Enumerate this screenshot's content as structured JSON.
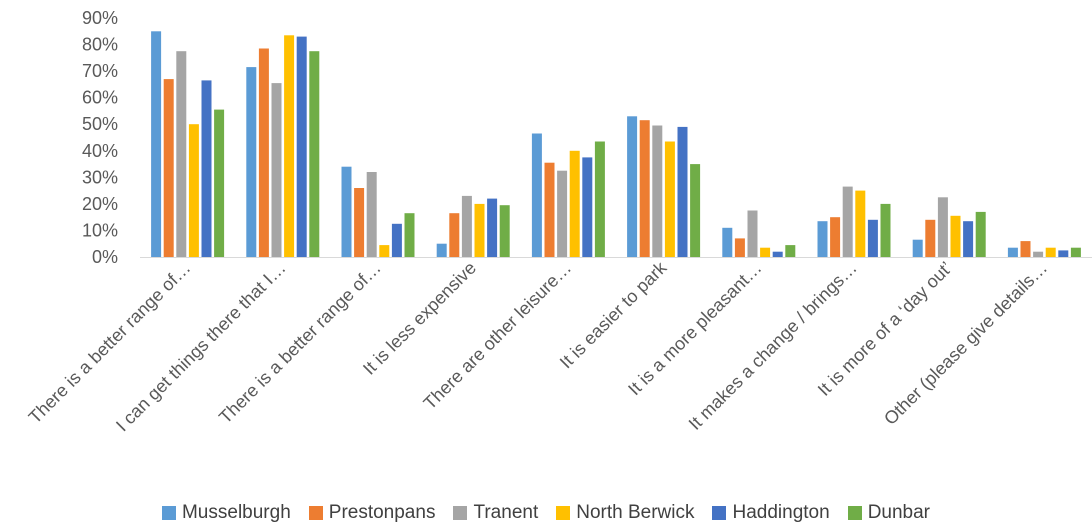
{
  "chart_data": {
    "type": "bar",
    "title": "",
    "xlabel": "",
    "ylabel": "",
    "ylim": [
      0,
      90
    ],
    "yticks": [
      "0%",
      "10%",
      "20%",
      "30%",
      "40%",
      "50%",
      "60%",
      "70%",
      "80%",
      "90%"
    ],
    "y_unit": "%",
    "grid": false,
    "legend_position": "bottom",
    "categories": [
      "There is a better range of…",
      "I can get things there that I…",
      "There is a better range of…",
      "It is less expensive",
      "There are other leisure…",
      "It is easier to park",
      "It is a more pleasant…",
      "It makes a change / brings…",
      "It is more of a ‘day out’",
      "Other (please give details…"
    ],
    "series": [
      {
        "name": "Musselburgh",
        "color": "#5B9BD5",
        "values": [
          85,
          71.5,
          34,
          5,
          46.5,
          53,
          11,
          13.5,
          6.5,
          3.5
        ]
      },
      {
        "name": "Prestonpans",
        "color": "#ED7D31",
        "values": [
          67,
          78.5,
          26,
          16.5,
          35.5,
          51.5,
          7,
          15,
          14,
          6
        ]
      },
      {
        "name": "Tranent",
        "color": "#A5A5A5",
        "values": [
          77.5,
          65.5,
          32,
          23,
          32.5,
          49.5,
          17.5,
          26.5,
          22.5,
          2
        ]
      },
      {
        "name": "North Berwick",
        "color": "#FFC000",
        "values": [
          50,
          83.5,
          4.5,
          20,
          40,
          43.5,
          3.5,
          25,
          15.5,
          3.5
        ]
      },
      {
        "name": "Haddington",
        "color": "#4472C4",
        "values": [
          66.5,
          83,
          12.5,
          22,
          37.5,
          49,
          2,
          14,
          13.5,
          2.5
        ]
      },
      {
        "name": "Dunbar",
        "color": "#70AD47",
        "values": [
          55.5,
          77.5,
          16.5,
          19.5,
          43.5,
          35,
          4.5,
          20,
          17,
          3.5
        ]
      }
    ]
  }
}
